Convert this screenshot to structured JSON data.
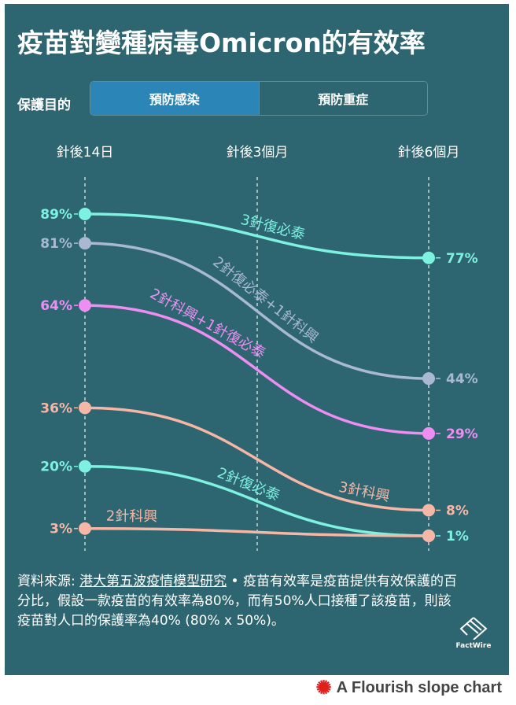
{
  "title": "疫苗對變種病毒Omicron的有效率",
  "control": {
    "label": "保護目的",
    "options": [
      {
        "label": "預防感染",
        "active": true
      },
      {
        "label": "預防重症",
        "active": false
      }
    ]
  },
  "chart_data": {
    "type": "slope",
    "columns": [
      "針後14日",
      "針後3個月",
      "針後6個月"
    ],
    "y_unit": "%",
    "series": [
      {
        "name": "3針復必泰",
        "start": 89,
        "end": 77,
        "color": "#7df2e0"
      },
      {
        "name": "2針復必泰+1針科興",
        "start": 81,
        "end": 44,
        "color": "#a9b9d1"
      },
      {
        "name": "2針科興+1針復必泰",
        "start": 64,
        "end": 29,
        "color": "#ee8ef2"
      },
      {
        "name": "3針科興",
        "start": 36,
        "end": 8,
        "color": "#f6b7a6"
      },
      {
        "name": "2針復必泰",
        "start": 20,
        "end": 1,
        "color": "#7df2e0"
      },
      {
        "name": "2針科興",
        "start": 3,
        "end": 1,
        "color": "#f6b7a6"
      }
    ],
    "start_labels": [
      "89%",
      "81%",
      "64%",
      "36%",
      "20%",
      "3%"
    ],
    "end_labels": [
      "77%",
      "44%",
      "29%",
      "8%",
      "1%"
    ]
  },
  "footer": {
    "source_prefix": "資料來源: ",
    "source_link": "港大第五波疫情模型研究",
    "text": " • 疫苗有效率是疫苗提供有效保護的百分比，假設一款疫苗的有效率為80%，而有50%人口接種了該疫苗，則該疫苗對人口的保護率為40% (80% x 50%)。"
  },
  "logo": "FactWire",
  "credit": "A Flourish slope chart",
  "colors": {
    "background": "#2d6570",
    "active_tab": "#2b85b6"
  }
}
